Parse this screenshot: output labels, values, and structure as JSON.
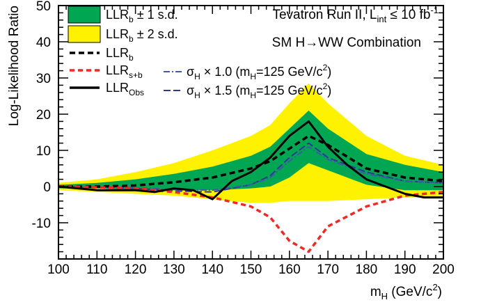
{
  "chart_data": {
    "type": "line",
    "xlabel": "m_H (GeV/c^2)",
    "xlabel_main": "m",
    "xlabel_sub": "H",
    "xlabel_rest": " (GeV/c",
    "xlabel_sup": "2",
    "xlabel_close": ")",
    "ylabel": "Log-Likelihood Ratio",
    "xlim": [
      100,
      200
    ],
    "ylim": [
      -20,
      50
    ],
    "xticks": [
      100,
      110,
      120,
      130,
      140,
      150,
      160,
      170,
      180,
      190,
      200
    ],
    "yticks": [
      -10,
      0,
      10,
      20,
      30,
      40,
      50
    ],
    "grid": false,
    "legend_position": "top-left",
    "annotations": {
      "line1_main": "Tevatron Run II, L",
      "line1_sub": "int",
      "line1_rest": " ≤ 10 fb",
      "line1_sup": "-1",
      "line2": "SM H→WW Combination"
    },
    "legend": [
      {
        "key": "band1",
        "base": "LLR",
        "sub": "b",
        "rest": " ± 1 s.d."
      },
      {
        "key": "band2",
        "base": "LLR",
        "sub": "b",
        "rest": " ± 2 s.d."
      },
      {
        "key": "llrb",
        "base": "LLR",
        "sub": "b",
        "rest": ""
      },
      {
        "key": "llrsb",
        "base": "LLR",
        "sub": "s+b",
        "rest": ""
      },
      {
        "key": "llrobs",
        "base": "LLR",
        "sub": "Obs",
        "rest": ""
      },
      {
        "key": "sig10",
        "base": "σ",
        "sub": "H",
        "rest": " × 1.0 (m",
        "sub2": "H",
        "rest2": "=125 GeV/c",
        "sup": "2",
        "rest3": ")"
      },
      {
        "key": "sig15",
        "base": "σ",
        "sub": "H",
        "rest": " × 1.5 (m",
        "sub2": "H",
        "rest2": "=125 GeV/c",
        "sup": "2",
        "rest3": ")"
      }
    ],
    "colors": {
      "band1": "#00a651",
      "band2": "#fff200",
      "llrb": "#000000",
      "llrsb": "#ee2a24",
      "llrobs": "#000000",
      "sig10": "#3a5ca8",
      "sig15": "#2e3a92"
    },
    "x": [
      100,
      110,
      120,
      130,
      140,
      150,
      155,
      160,
      165,
      170,
      180,
      190,
      200
    ],
    "series": [
      {
        "key": "band2",
        "name": "LLR_b ± 2 s.d.",
        "upper": [
          1,
          2,
          4,
          6.5,
          10,
          14,
          17,
          23,
          28.5,
          23,
          14,
          8.5,
          6
        ],
        "lower": [
          -1,
          -1.5,
          -2,
          -2.5,
          -3.5,
          -4.5,
          -4.5,
          -4,
          -4,
          -4,
          -3.5,
          -3,
          -3
        ]
      },
      {
        "key": "band1",
        "name": "LLR_b ± 1 s.d.",
        "upper": [
          0.5,
          1,
          2,
          3.5,
          5.5,
          8.5,
          11,
          16,
          21,
          16,
          9,
          6,
          4
        ],
        "lower": [
          -0.5,
          -0.5,
          -1,
          -1,
          -1,
          -0.5,
          0,
          2.5,
          6.5,
          4.5,
          0.5,
          -1,
          -1
        ]
      },
      {
        "key": "llrb",
        "name": "LLR_b",
        "values": [
          0,
          0,
          0.3,
          1.2,
          2.5,
          5,
          7,
          10.5,
          14,
          11.5,
          5,
          2.5,
          1.5
        ]
      },
      {
        "key": "llrsb",
        "name": "LLR_s+b",
        "values": [
          0,
          -0.2,
          -0.5,
          -1.5,
          -3,
          -5.5,
          -8.5,
          -15,
          -18,
          -11,
          -5.5,
          -2.5,
          -1.5
        ]
      },
      {
        "key": "llrobs",
        "name": "LLR_Obs",
        "x": [
          100,
          105,
          110,
          115,
          120,
          125,
          130,
          135,
          140,
          145,
          150,
          155,
          160,
          165,
          170,
          175,
          180,
          185,
          190,
          195,
          200
        ],
        "values": [
          0,
          -0.5,
          -1,
          -1,
          -1,
          -1.5,
          -0.5,
          -1,
          -3.5,
          1.5,
          4,
          8,
          14,
          18,
          11,
          6,
          2,
          0,
          -2,
          -3,
          -3
        ]
      },
      {
        "key": "sig10",
        "name": "σ_H × 1.0 (m_H=125 GeV/c^2)",
        "values": [
          0,
          -0.1,
          -0.3,
          -0.8,
          -1,
          0.5,
          2.5,
          7,
          11,
          7.5,
          3.5,
          1.5,
          1
        ]
      },
      {
        "key": "sig15",
        "name": "σ_H × 1.5 (m_H=125 GeV/c^2)",
        "values": [
          0,
          -0.2,
          -0.5,
          -1.2,
          -1.5,
          0.5,
          3,
          8,
          12,
          8,
          4,
          1.5,
          1
        ]
      }
    ]
  }
}
